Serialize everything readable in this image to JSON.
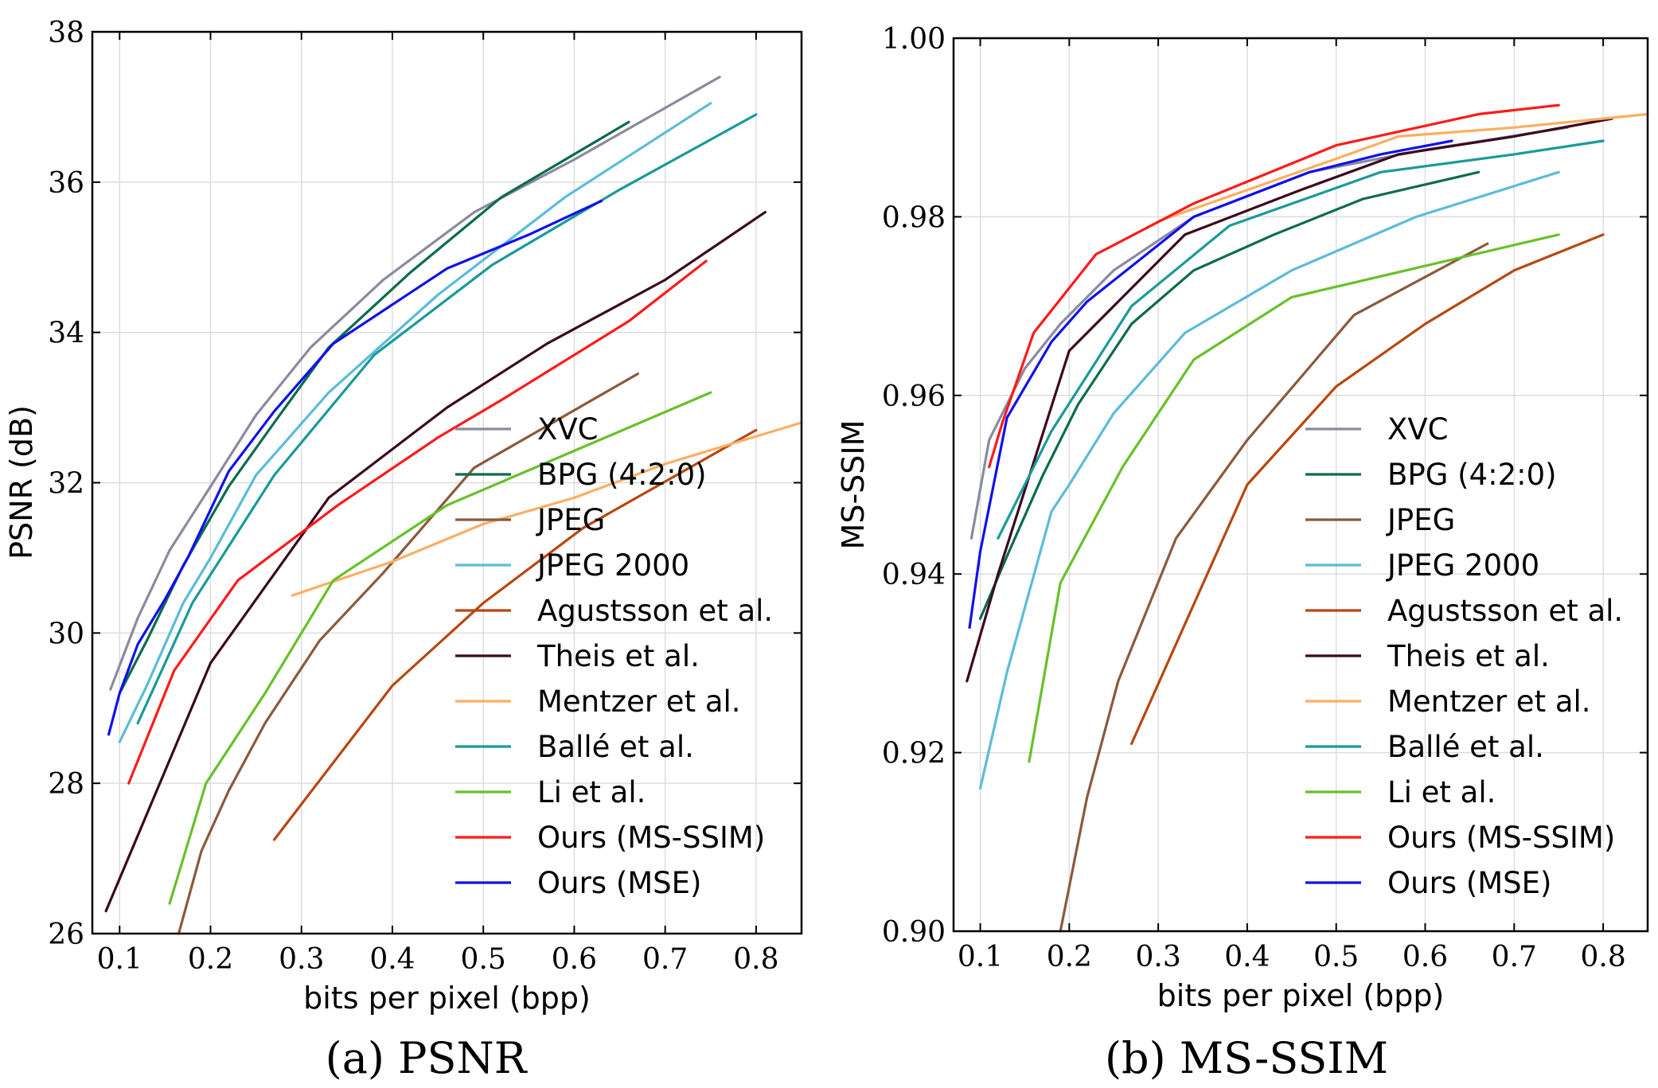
{
  "series_styles": [
    {
      "name": "XVC",
      "color": "#8a8aa0"
    },
    {
      "name": "BPG (4:2:0)",
      "color": "#0c6b4e"
    },
    {
      "name": "JPEG",
      "color": "#8b5a3c"
    },
    {
      "name": "JPEG 2000",
      "color": "#5bbcd9"
    },
    {
      "name": "Agustsson et al.",
      "color": "#b8470f"
    },
    {
      "name": "Theis et al.",
      "color": "#3a0a1f"
    },
    {
      "name": "Mentzer et al.",
      "color": "#fdae61"
    },
    {
      "name": "Ballé et al.",
      "color": "#1a9a9a"
    },
    {
      "name": "Li et al.",
      "color": "#66c12a"
    },
    {
      "name": "Ours (MS-SSIM)",
      "color": "#ff1a1a"
    },
    {
      "name": "Ours (MSE)",
      "color": "#1010ee"
    }
  ],
  "chart_data": [
    {
      "type": "line",
      "caption": "(a) PSNR",
      "xlabel": "bits per pixel (bpp)",
      "ylabel": "PSNR (dB)",
      "xlim": [
        0.07,
        0.85
      ],
      "ylim": [
        26,
        38
      ],
      "xticks": [
        0.1,
        0.2,
        0.3,
        0.4,
        0.5,
        0.6,
        0.7,
        0.8
      ],
      "xtick_labels": [
        "0.1",
        "0.2",
        "0.3",
        "0.4",
        "0.5",
        "0.6",
        "0.7",
        "0.8"
      ],
      "yticks": [
        26,
        28,
        30,
        32,
        34,
        36,
        38
      ],
      "ytick_labels": [
        "26",
        "28",
        "30",
        "32",
        "34",
        "36",
        "38"
      ],
      "grid": true,
      "legend": "lower-right",
      "series": [
        {
          "name": "XVC",
          "x": [
            0.09,
            0.12,
            0.155,
            0.2,
            0.25,
            0.31,
            0.39,
            0.49,
            0.6,
            0.76
          ],
          "y": [
            29.25,
            30.2,
            31.1,
            31.95,
            32.9,
            33.8,
            34.7,
            35.6,
            36.3,
            37.4
          ]
        },
        {
          "name": "BPG (4:2:0)",
          "x": [
            0.1,
            0.13,
            0.17,
            0.22,
            0.27,
            0.33,
            0.42,
            0.52,
            0.66
          ],
          "y": [
            29.2,
            29.9,
            30.9,
            31.95,
            32.8,
            33.8,
            34.8,
            35.8,
            36.8
          ]
        },
        {
          "name": "JPEG",
          "x": [
            0.165,
            0.19,
            0.22,
            0.26,
            0.32,
            0.39,
            0.49,
            0.67
          ],
          "y": [
            26.0,
            27.1,
            27.9,
            28.8,
            29.9,
            30.8,
            32.2,
            33.45
          ]
        },
        {
          "name": "JPEG 2000",
          "x": [
            0.1,
            0.13,
            0.17,
            0.2,
            0.25,
            0.33,
            0.45,
            0.59,
            0.75
          ],
          "y": [
            28.55,
            29.3,
            30.4,
            31.0,
            32.1,
            33.2,
            34.5,
            35.8,
            37.05
          ]
        },
        {
          "name": "Agustsson et al.",
          "x": [
            0.27,
            0.4,
            0.5,
            0.61,
            0.8
          ],
          "y": [
            27.25,
            29.3,
            30.4,
            31.4,
            32.7
          ]
        },
        {
          "name": "Theis et al.",
          "x": [
            0.085,
            0.2,
            0.33,
            0.46,
            0.57,
            0.7,
            0.81
          ],
          "y": [
            26.3,
            29.6,
            31.8,
            33.0,
            33.85,
            34.7,
            35.6
          ]
        },
        {
          "name": "Mentzer et al.",
          "x": [
            0.29,
            0.4,
            0.5,
            0.6,
            0.7,
            0.85
          ],
          "y": [
            30.5,
            30.95,
            31.45,
            31.8,
            32.25,
            32.8
          ]
        },
        {
          "name": "Ballé et al.",
          "x": [
            0.12,
            0.18,
            0.27,
            0.38,
            0.51,
            0.65,
            0.8
          ],
          "y": [
            28.8,
            30.4,
            32.1,
            33.7,
            34.9,
            35.9,
            36.9
          ]
        },
        {
          "name": "Li et al.",
          "x": [
            0.155,
            0.195,
            0.26,
            0.335,
            0.46,
            0.75
          ],
          "y": [
            26.4,
            28.0,
            29.2,
            30.7,
            31.7,
            33.2
          ]
        },
        {
          "name": "Ours (MS-SSIM)",
          "x": [
            0.11,
            0.16,
            0.23,
            0.34,
            0.45,
            0.52,
            0.66,
            0.745
          ],
          "y": [
            28.0,
            29.5,
            30.7,
            31.7,
            32.6,
            33.1,
            34.15,
            34.95
          ]
        },
        {
          "name": "Ours (MSE)",
          "x": [
            0.088,
            0.1,
            0.12,
            0.15,
            0.175,
            0.22,
            0.27,
            0.335,
            0.46,
            0.55,
            0.63
          ],
          "y": [
            28.65,
            29.2,
            29.85,
            30.45,
            31.0,
            32.15,
            32.95,
            33.85,
            34.85,
            35.3,
            35.75
          ]
        }
      ]
    },
    {
      "type": "line",
      "caption": "(b) MS-SSIM",
      "xlabel": "bits per pixel (bpp)",
      "ylabel": "MS-SSIM",
      "xlim": [
        0.07,
        0.85
      ],
      "ylim": [
        0.9,
        1.0
      ],
      "xticks": [
        0.1,
        0.2,
        0.3,
        0.4,
        0.5,
        0.6,
        0.7,
        0.8
      ],
      "xtick_labels": [
        "0.1",
        "0.2",
        "0.3",
        "0.4",
        "0.5",
        "0.6",
        "0.7",
        "0.8"
      ],
      "yticks": [
        0.9,
        0.92,
        0.94,
        0.96,
        0.98,
        1.0
      ],
      "ytick_labels": [
        "0.90",
        "0.92",
        "0.94",
        "0.96",
        "0.98",
        "1.00"
      ],
      "grid": true,
      "legend": "lower-right",
      "series": [
        {
          "name": "XVC",
          "x": [
            0.09,
            0.11,
            0.15,
            0.19,
            0.25,
            0.34,
            0.47,
            0.6,
            0.76
          ],
          "y": [
            0.944,
            0.955,
            0.963,
            0.968,
            0.974,
            0.98,
            0.985,
            0.9875,
            0.99
          ]
        },
        {
          "name": "BPG (4:2:0)",
          "x": [
            0.1,
            0.13,
            0.17,
            0.21,
            0.27,
            0.34,
            0.43,
            0.53,
            0.66
          ],
          "y": [
            0.935,
            0.942,
            0.951,
            0.959,
            0.968,
            0.974,
            0.978,
            0.982,
            0.985
          ]
        },
        {
          "name": "JPEG",
          "x": [
            0.19,
            0.22,
            0.255,
            0.32,
            0.4,
            0.52,
            0.67
          ],
          "y": [
            0.9,
            0.915,
            0.928,
            0.944,
            0.955,
            0.969,
            0.977
          ]
        },
        {
          "name": "JPEG 2000",
          "x": [
            0.1,
            0.13,
            0.18,
            0.2,
            0.25,
            0.33,
            0.45,
            0.59,
            0.75
          ],
          "y": [
            0.916,
            0.929,
            0.947,
            0.95,
            0.958,
            0.967,
            0.974,
            0.98,
            0.985
          ]
        },
        {
          "name": "Agustsson et al.",
          "x": [
            0.27,
            0.4,
            0.5,
            0.6,
            0.7,
            0.8
          ],
          "y": [
            0.921,
            0.95,
            0.961,
            0.968,
            0.974,
            0.978
          ]
        },
        {
          "name": "Theis et al.",
          "x": [
            0.085,
            0.12,
            0.2,
            0.33,
            0.46,
            0.57,
            0.7,
            0.81
          ],
          "y": [
            0.928,
            0.94,
            0.965,
            0.978,
            0.983,
            0.987,
            0.989,
            0.991
          ]
        },
        {
          "name": "Mentzer et al.",
          "x": [
            0.3,
            0.4,
            0.5,
            0.57,
            0.7,
            0.85
          ],
          "y": [
            0.9795,
            0.983,
            0.9865,
            0.989,
            0.99,
            0.9915
          ]
        },
        {
          "name": "Ballé et al.",
          "x": [
            0.12,
            0.18,
            0.27,
            0.38,
            0.55,
            0.7,
            0.8
          ],
          "y": [
            0.944,
            0.956,
            0.97,
            0.979,
            0.985,
            0.987,
            0.9885
          ]
        },
        {
          "name": "Li et al.",
          "x": [
            0.155,
            0.19,
            0.26,
            0.34,
            0.45,
            0.75
          ],
          "y": [
            0.919,
            0.939,
            0.952,
            0.964,
            0.971,
            0.978
          ]
        },
        {
          "name": "Ours (MS-SSIM)",
          "x": [
            0.11,
            0.125,
            0.16,
            0.23,
            0.34,
            0.5,
            0.66,
            0.75
          ],
          "y": [
            0.952,
            0.957,
            0.967,
            0.9758,
            0.9815,
            0.988,
            0.9915,
            0.9925
          ]
        },
        {
          "name": "Ours (MSE)",
          "x": [
            0.088,
            0.1,
            0.13,
            0.18,
            0.22,
            0.34,
            0.47,
            0.55,
            0.63
          ],
          "y": [
            0.934,
            0.9425,
            0.9575,
            0.966,
            0.9705,
            0.98,
            0.985,
            0.987,
            0.9885
          ]
        }
      ]
    }
  ]
}
